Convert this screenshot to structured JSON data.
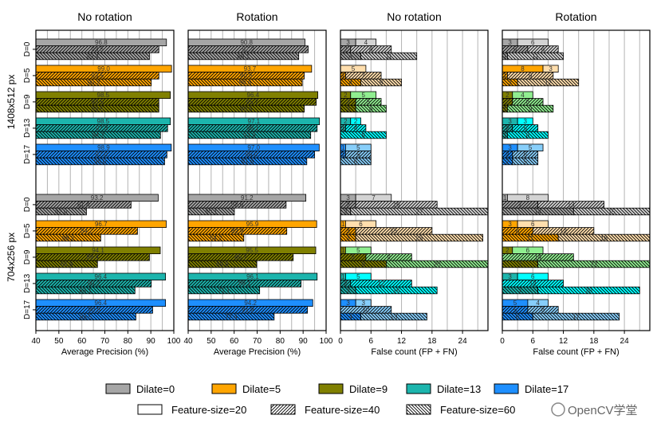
{
  "colors": {
    "dilate_dark": [
      "#a6a6a6",
      "#ffa500",
      "#808000",
      "#1cb5ad",
      "#1e8fff"
    ],
    "dilate_light": [
      "#d3d3d3",
      "#ffdead",
      "#90ee90",
      "#00ffff",
      "#87cefa"
    ],
    "grid": "#b4b4b4"
  },
  "row_groups": [
    "1408x512 px",
    "704x256 px"
  ],
  "dilate_labels": [
    "D=0",
    "D=5",
    "D=9",
    "D=13",
    "D=17"
  ],
  "legend": {
    "dilate": [
      "Dilate=0",
      "Dilate=5",
      "Dilate=9",
      "Dilate=13",
      "Dilate=17"
    ],
    "feature_size": [
      "Feature-size=20",
      "Feature-size=40",
      "Feature-size=60"
    ],
    "feature_pattern": [
      "solid",
      "hatch-forward",
      "hatch-backward"
    ]
  },
  "watermark": "OpenCV学堂",
  "chart_data": [
    {
      "type": "bar",
      "orientation": "horizontal",
      "title": "No rotation",
      "xlabel": "Average Precision (%)",
      "xlim": [
        40,
        100
      ],
      "xticks": [
        40,
        50,
        60,
        70,
        80,
        90,
        100
      ],
      "grid_step": 5,
      "grid": true,
      "values": [
        [
          [
            96.8,
            93.5,
            89.4
          ],
          [
            99.0,
            93.5,
            90.2
          ],
          [
            98.5,
            93.5,
            93.5
          ],
          [
            98.5,
            97.3,
            94.2
          ],
          [
            98.9,
            97.0,
            96.0
          ]
        ],
        [
          [
            93.2,
            81.4,
            62.0
          ],
          [
            96.7,
            84.2,
            68.2
          ],
          [
            94.1,
            89.4,
            66.8
          ],
          [
            96.4,
            90.2,
            83.1
          ],
          [
            96.4,
            90.8,
            83.5
          ]
        ]
      ]
    },
    {
      "type": "bar",
      "orientation": "horizontal",
      "title": "Rotation",
      "xlabel": "Average Precision (%)",
      "xlim": [
        40,
        100
      ],
      "xticks": [
        40,
        50,
        60,
        70,
        80,
        90,
        100
      ],
      "grid_step": 5,
      "grid": true,
      "values": [
        [
          [
            90.8,
            92.2,
            88.1
          ],
          [
            93.7,
            90.5,
            89.6
          ],
          [
            96.4,
            95.7,
            90.5
          ],
          [
            97.1,
            96.1,
            93.3
          ],
          [
            97.0,
            95.0,
            91.6
          ]
        ],
        [
          [
            91.2,
            82.6,
            60.1
          ],
          [
            95.9,
            82.9,
            64.2
          ],
          [
            95.5,
            85.7,
            69.8
          ],
          [
            96.1,
            89.1,
            71.1
          ],
          [
            94.2,
            91.9,
            77.4
          ]
        ]
      ]
    },
    {
      "type": "stacked-bar",
      "orientation": "horizontal",
      "title": "No rotation",
      "xlabel": "False count (FP + FN)",
      "xlim": [
        0,
        29
      ],
      "xticks": [
        0,
        6,
        12,
        18,
        24
      ],
      "grid_step": 3,
      "grid": true,
      "values": [
        [
          [
            [
              3,
              4
            ],
            [
              2,
              8
            ],
            [
              4,
              11
            ]
          ],
          [
            [
              0,
              5
            ],
            [
              1,
              7
            ],
            [
              4,
              8
            ]
          ],
          [
            [
              2,
              5
            ],
            [
              3,
              5
            ],
            [
              3,
              6
            ]
          ],
          [
            [
              2,
              2
            ],
            [
              1,
              4
            ],
            [
              0,
              9
            ]
          ],
          [
            [
              1,
              5
            ],
            [
              1,
              5
            ],
            [
              0,
              6
            ]
          ]
        ],
        [
          [
            [
              3,
              7
            ],
            [
              3,
              16
            ],
            [
              2,
              27
            ]
          ],
          [
            [
              1,
              6
            ],
            [
              3,
              15
            ],
            [
              3,
              25
            ]
          ],
          [
            [
              1,
              5
            ],
            [
              5,
              9
            ],
            [
              9,
              20
            ]
          ],
          [
            [
              1,
              5
            ],
            [
              2,
              12
            ],
            [
              3,
              16
            ]
          ],
          [
            [
              3,
              3
            ],
            [
              0,
              10
            ],
            [
              4,
              13
            ]
          ]
        ]
      ]
    },
    {
      "type": "stacked-bar",
      "orientation": "horizontal",
      "title": "Rotation",
      "xlabel": "False count (FP + FN)",
      "xlim": [
        0,
        29
      ],
      "xticks": [
        0,
        6,
        12,
        18,
        24
      ],
      "grid_step": 3,
      "grid": true,
      "values": [
        [
          [
            [
              3,
              6
            ],
            [
              5,
              6
            ],
            [
              1,
              11
            ]
          ],
          [
            [
              8,
              3
            ],
            [
              1,
              9
            ],
            [
              3,
              12
            ]
          ],
          [
            [
              2,
              4
            ],
            [
              2,
              6
            ],
            [
              1,
              9
            ]
          ],
          [
            [
              3,
              3
            ],
            [
              2,
              5
            ],
            [
              1,
              8
            ]
          ],
          [
            [
              3,
              5
            ],
            [
              2,
              5
            ],
            [
              2,
              5
            ]
          ]
        ],
        [
          [
            [
              1,
              8
            ],
            [
              7,
              13
            ],
            [
              14,
              15
            ]
          ],
          [
            [
              3,
              6
            ],
            [
              6,
              12
            ],
            [
              11,
              18
            ]
          ],
          [
            [
              2,
              6
            ],
            [
              0,
              14
            ],
            [
              7,
              22
            ]
          ],
          [
            [
              3,
              6
            ],
            [
              0,
              12
            ],
            [
              7,
              20
            ]
          ],
          [
            [
              5,
              4
            ],
            [
              5,
              6
            ],
            [
              6,
              17
            ]
          ]
        ]
      ]
    }
  ]
}
